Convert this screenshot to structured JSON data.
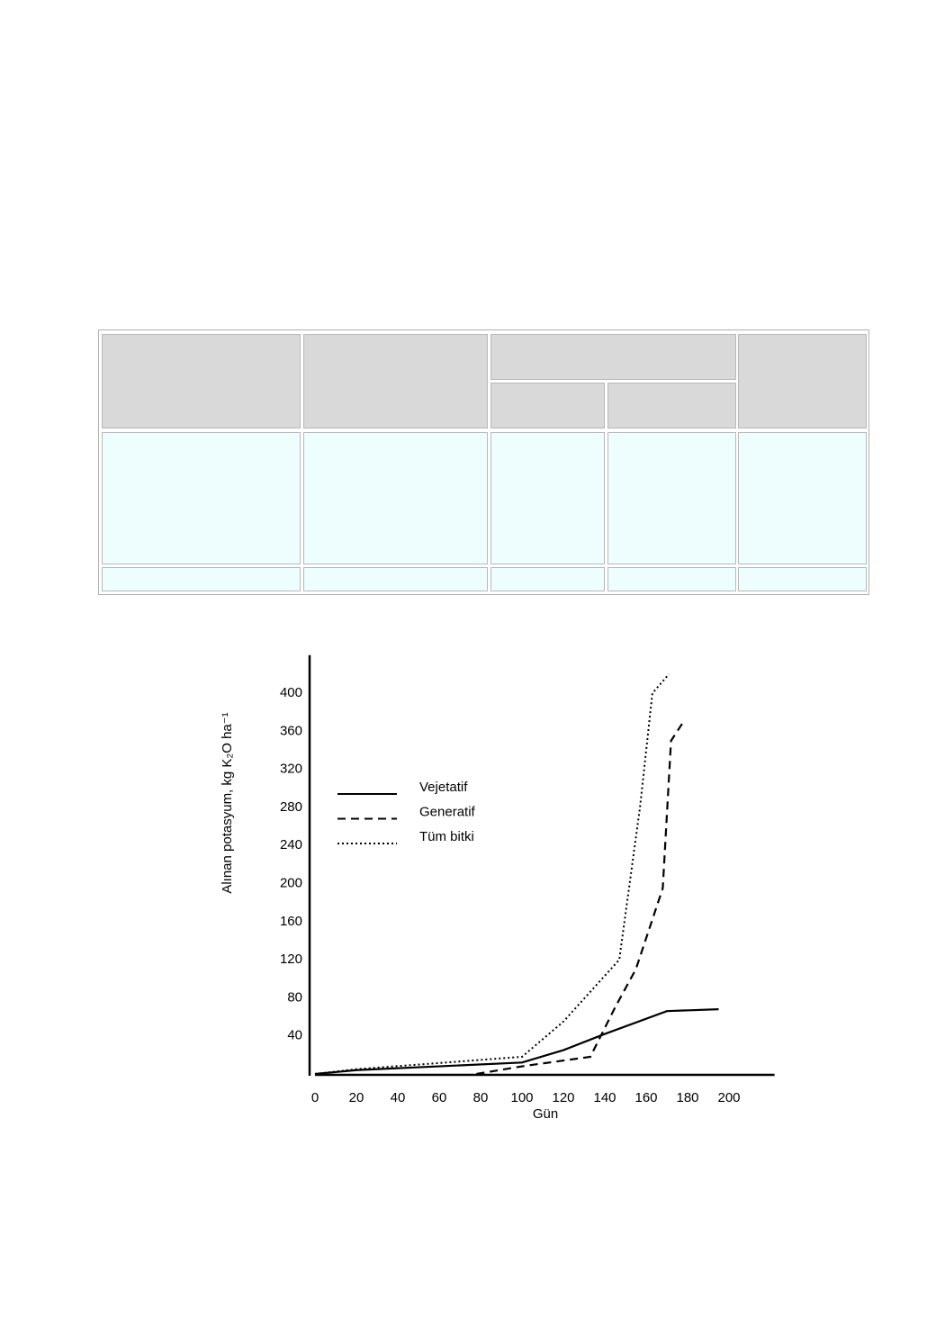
{
  "chart_data": {
    "type": "line",
    "x_label": "Gün",
    "y_label": "Alınan potasyum, kg K₂O ha⁻¹",
    "xlim": [
      0,
      222
    ],
    "ylim": [
      0,
      440
    ],
    "xticks": [
      0,
      20,
      40,
      60,
      80,
      100,
      120,
      140,
      160,
      180,
      200
    ],
    "yticks": [
      40,
      80,
      120,
      160,
      200,
      240,
      280,
      320,
      360,
      400
    ],
    "grid": false,
    "legend": "upper-left",
    "series": [
      {
        "name": "Vejetatif",
        "color": "#000000",
        "style": "solid",
        "x": [
          0,
          20,
          100,
          120,
          140,
          170,
          195
        ],
        "values": [
          0,
          4,
          12,
          25,
          42,
          66,
          68
        ]
      },
      {
        "name": "Generatif",
        "color": "#000000",
        "style": "dashed",
        "x": [
          78,
          100,
          133,
          145,
          155,
          168,
          172,
          178
        ],
        "values": [
          0,
          8,
          18,
          70,
          110,
          195,
          350,
          370
        ]
      },
      {
        "name": "Tüm bitki",
        "color": "#000000",
        "style": "dotted",
        "x": [
          0,
          20,
          100,
          120,
          147,
          157,
          163,
          171
        ],
        "values": [
          0,
          5,
          18,
          55,
          120,
          280,
          400,
          420
        ]
      }
    ]
  }
}
